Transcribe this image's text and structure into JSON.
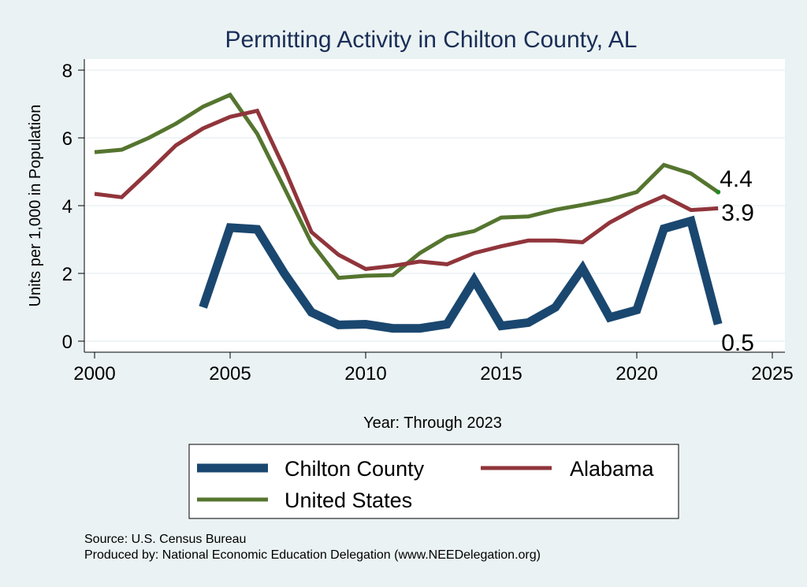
{
  "colors": {
    "chilton": "#1a476f",
    "alabama": "#90353b",
    "us": "#55752f",
    "title": "#1a2e57",
    "background": "#eaf2f3",
    "plot_background": "#ffffff",
    "grid": "#eaf2f3"
  },
  "chart_data": {
    "type": "line",
    "title": "Permitting Activity in Chilton County, AL",
    "xlabel": "Year: Through 2023",
    "ylabel": "Units per 1,000 in Population",
    "xlim": [
      2000,
      2025
    ],
    "ylim": [
      0,
      8
    ],
    "xticks": [
      2000,
      2005,
      2010,
      2015,
      2020,
      2025
    ],
    "yticks": [
      0,
      2,
      4,
      6,
      8
    ],
    "grid": true,
    "legend_position": "bottom",
    "series": [
      {
        "name": "Chilton County",
        "key": "chilton",
        "end_label": "0.5",
        "x": [
          2004,
          2005,
          2006,
          2007,
          2008,
          2009,
          2010,
          2011,
          2012,
          2013,
          2014,
          2015,
          2016,
          2017,
          2018,
          2019,
          2020,
          2021,
          2022,
          2023
        ],
        "values": [
          1.0,
          3.35,
          3.3,
          2.0,
          0.85,
          0.48,
          0.5,
          0.38,
          0.38,
          0.5,
          1.8,
          0.45,
          0.55,
          1.0,
          2.15,
          0.7,
          0.92,
          3.32,
          3.55,
          0.5
        ]
      },
      {
        "name": "Alabama",
        "key": "alabama",
        "end_label": "3.9",
        "x": [
          2000,
          2001,
          2002,
          2003,
          2004,
          2005,
          2006,
          2007,
          2008,
          2009,
          2010,
          2011,
          2012,
          2013,
          2014,
          2015,
          2016,
          2017,
          2018,
          2019,
          2020,
          2021,
          2022,
          2023
        ],
        "values": [
          4.35,
          4.25,
          5.0,
          5.78,
          6.28,
          6.62,
          6.8,
          5.1,
          3.22,
          2.55,
          2.13,
          2.22,
          2.35,
          2.27,
          2.6,
          2.8,
          2.97,
          2.97,
          2.92,
          3.5,
          3.93,
          4.28,
          3.87,
          3.92
        ]
      },
      {
        "name": "United States",
        "key": "us",
        "end_label": "4.4",
        "x": [
          2000,
          2001,
          2002,
          2003,
          2004,
          2005,
          2006,
          2007,
          2008,
          2009,
          2010,
          2011,
          2012,
          2013,
          2014,
          2015,
          2016,
          2017,
          2018,
          2019,
          2020,
          2021,
          2022,
          2023
        ],
        "values": [
          5.58,
          5.65,
          6.0,
          6.42,
          6.92,
          7.27,
          6.12,
          4.52,
          2.9,
          1.87,
          1.93,
          1.95,
          2.6,
          3.08,
          3.25,
          3.65,
          3.68,
          3.88,
          4.02,
          4.18,
          4.4,
          5.2,
          4.95,
          4.4
        ]
      }
    ],
    "source_note": "Source: U.S. Census Bureau",
    "producer_note": "Produced by: National Economic Education Delegation (www.NEEDelegation.org)"
  }
}
